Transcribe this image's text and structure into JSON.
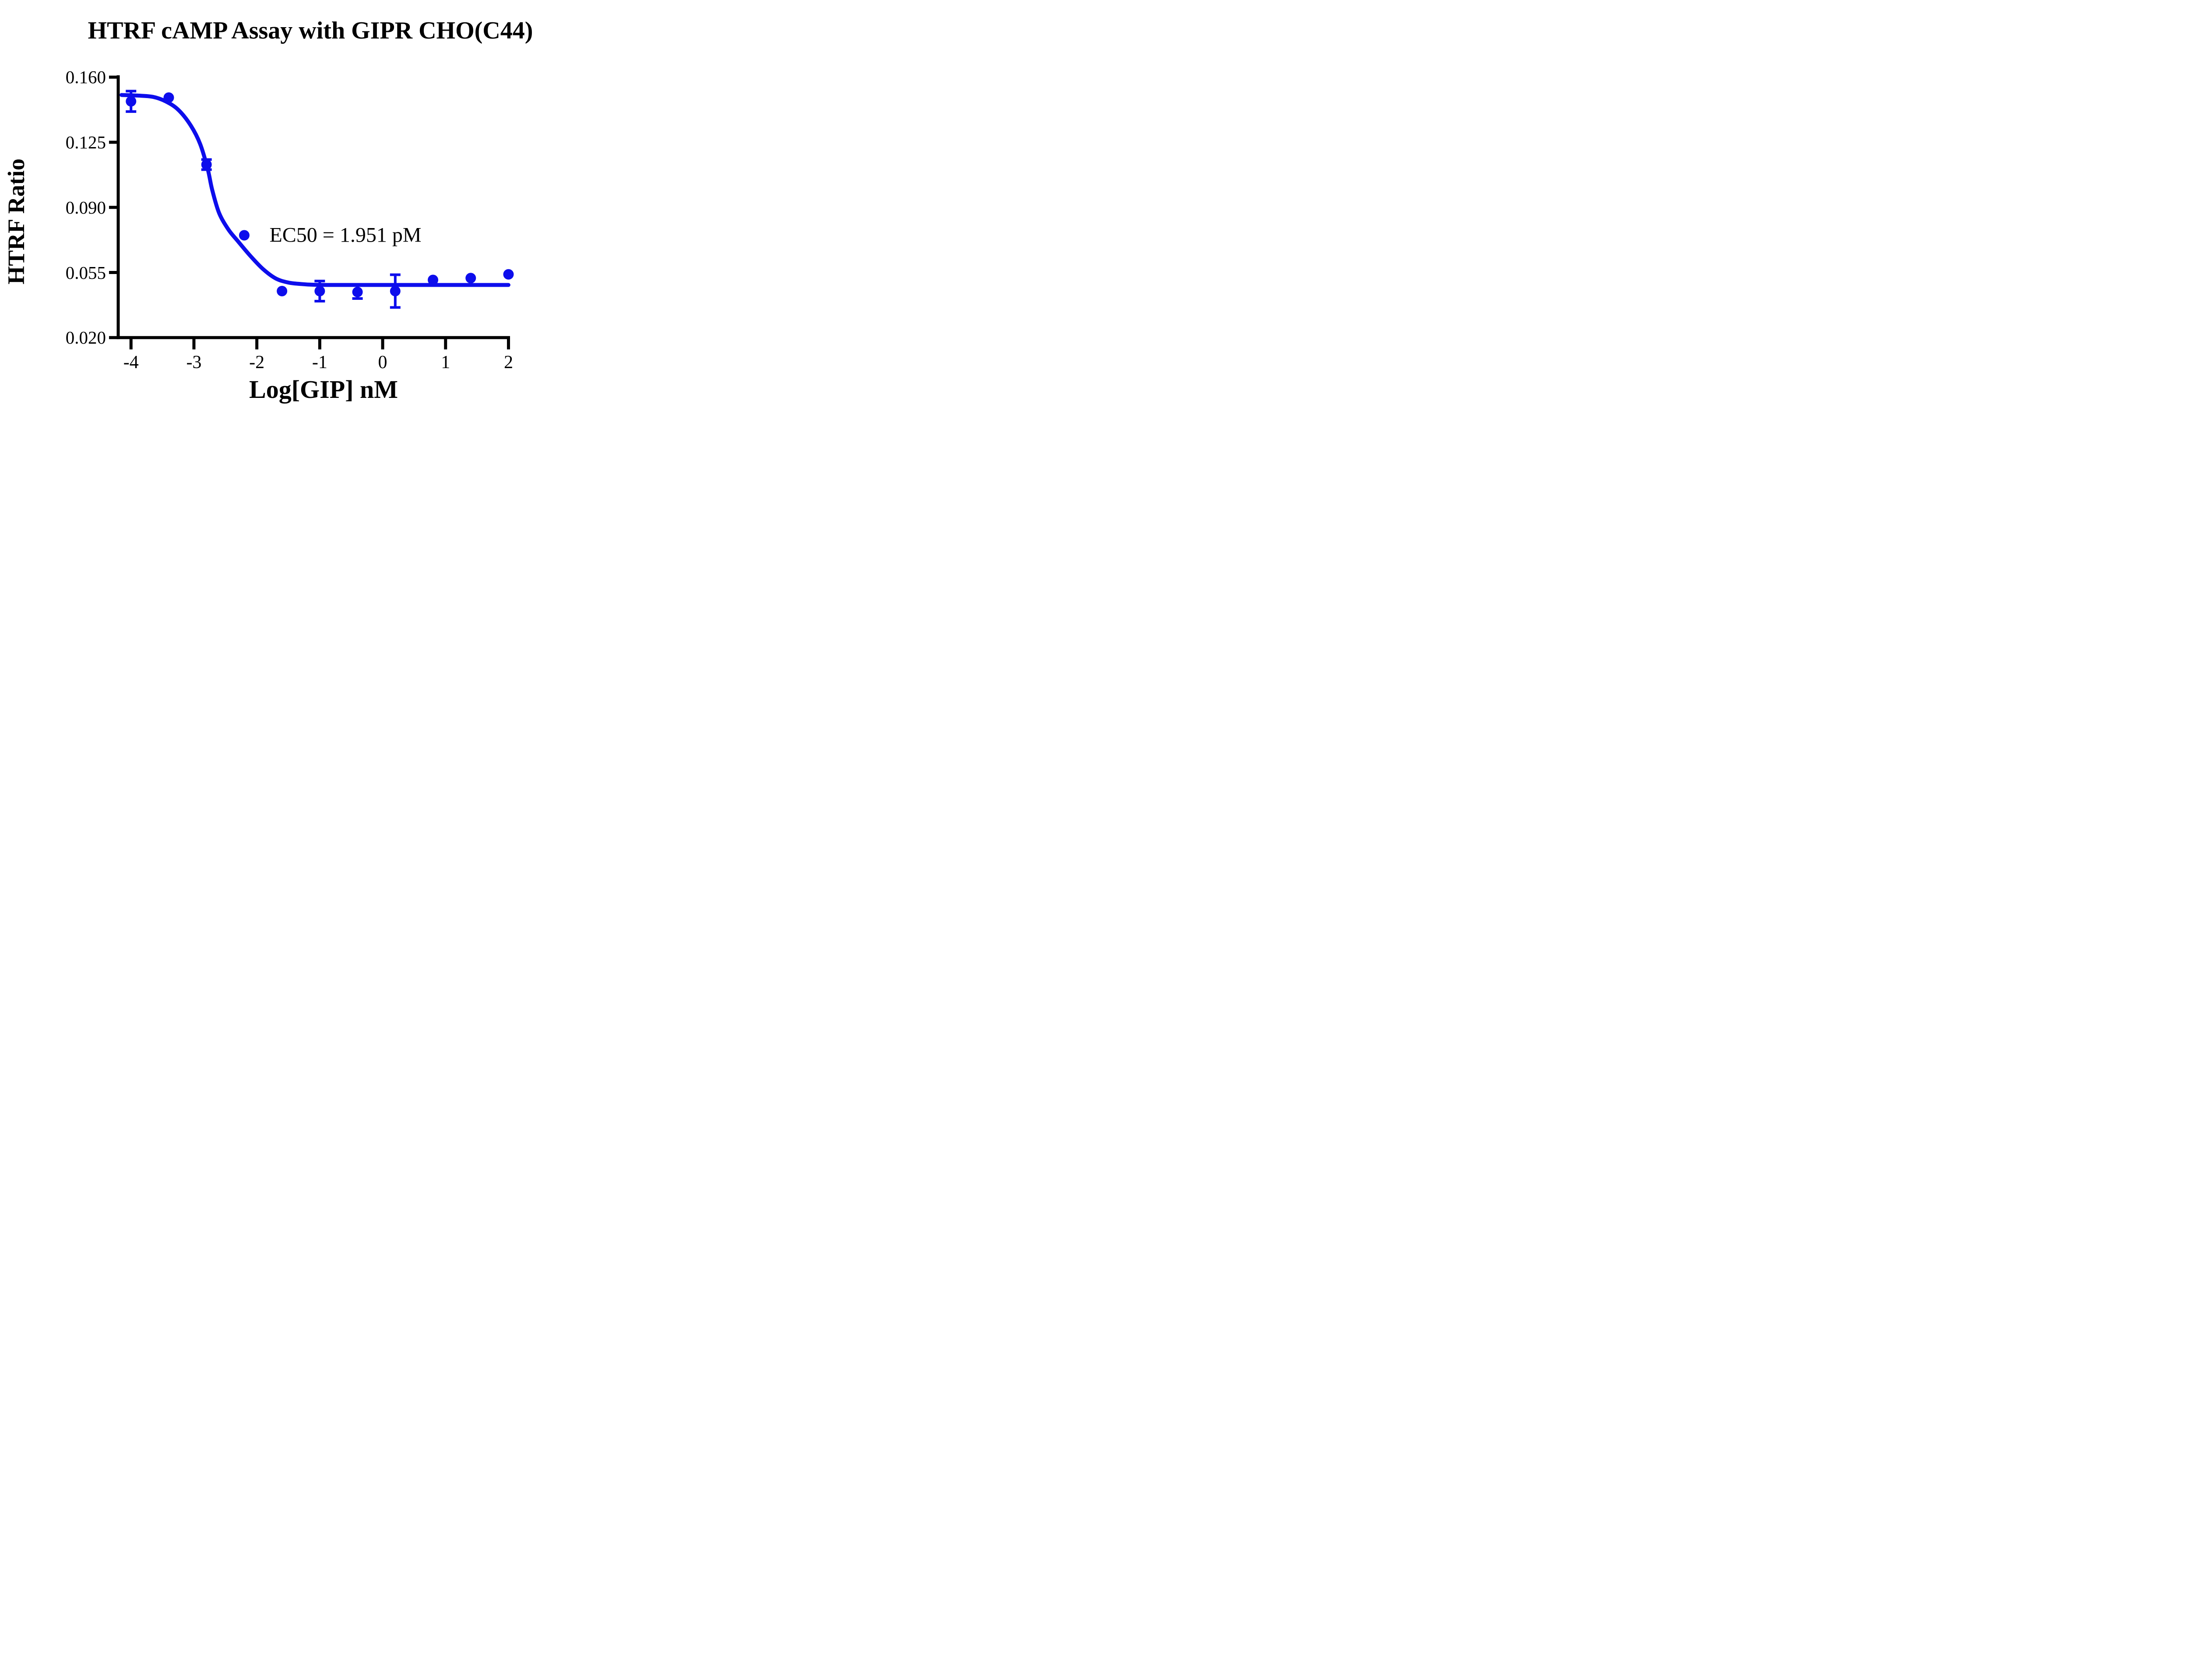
{
  "title": "HTRF cAMP Assay with GIPR CHO(C44)",
  "colors": {
    "accent": "#0d0dec",
    "axis": "#000000"
  },
  "chart_data": {
    "type": "scatter",
    "title": "HTRF cAMP Assay with GIPR CHO(C44)",
    "xlabel": "Log[GIP] nM",
    "ylabel": "HTRF Ratio",
    "annotation": "EC50 = 1.951 pM",
    "ec50_pM": 1.951,
    "xlim": [
      -4.2,
      2.03
    ],
    "ylim": [
      0.02,
      0.161
    ],
    "grid": false,
    "legend": "none",
    "x_ticks": [
      {
        "value": -4,
        "label": "-4"
      },
      {
        "value": -3,
        "label": "-3"
      },
      {
        "value": -2,
        "label": "-2"
      },
      {
        "value": -1,
        "label": "-1"
      },
      {
        "value": 0,
        "label": "0"
      },
      {
        "value": 1,
        "label": "1"
      },
      {
        "value": 2,
        "label": "2"
      }
    ],
    "y_ticks": [
      {
        "value": 0.16,
        "label": "0.160"
      },
      {
        "value": 0.125,
        "label": "0.125"
      },
      {
        "value": 0.09,
        "label": "0.090"
      },
      {
        "value": 0.055,
        "label": "0.055"
      },
      {
        "value": 0.02,
        "label": "0.020"
      }
    ],
    "points": [
      {
        "x": -4.0,
        "y": 0.147,
        "err": 0.0055
      },
      {
        "x": -3.4,
        "y": 0.149,
        "err": null
      },
      {
        "x": -2.8,
        "y": 0.113,
        "err": 0.0027
      },
      {
        "x": -2.2,
        "y": 0.075,
        "err": null
      },
      {
        "x": -1.6,
        "y": 0.045,
        "err": null
      },
      {
        "x": -1.0,
        "y": 0.045,
        "err": 0.0054
      },
      {
        "x": -0.4,
        "y": 0.0445,
        "err": 0.0035
      },
      {
        "x": 0.2,
        "y": 0.045,
        "err": 0.0088
      },
      {
        "x": 0.8,
        "y": 0.051,
        "err": null
      },
      {
        "x": 1.4,
        "y": 0.052,
        "err": null
      },
      {
        "x": 2.0,
        "y": 0.054,
        "err": null
      }
    ],
    "curve_fit": {
      "top": 0.1505,
      "bottom": 0.0483,
      "waypoints": [
        [
          -4.15,
          0.1504
        ],
        [
          -3.9,
          0.1501
        ],
        [
          -3.65,
          0.1494
        ],
        [
          -3.45,
          0.147
        ],
        [
          -3.25,
          0.1425
        ],
        [
          -3.05,
          0.134
        ],
        [
          -2.9,
          0.124
        ],
        [
          -2.78,
          0.1105
        ],
        [
          -2.71,
          0.0995
        ],
        [
          -2.6,
          0.087
        ],
        [
          -2.45,
          0.078
        ],
        [
          -2.3,
          0.0718
        ],
        [
          -2.1,
          0.0638
        ],
        [
          -1.9,
          0.0568
        ],
        [
          -1.7,
          0.0518
        ],
        [
          -1.5,
          0.0496
        ],
        [
          -1.3,
          0.0488
        ],
        [
          -1.1,
          0.0484
        ],
        [
          -0.8,
          0.0483
        ],
        [
          0.0,
          0.0483
        ],
        [
          1.0,
          0.0483
        ],
        [
          2.0,
          0.0483
        ]
      ]
    }
  }
}
